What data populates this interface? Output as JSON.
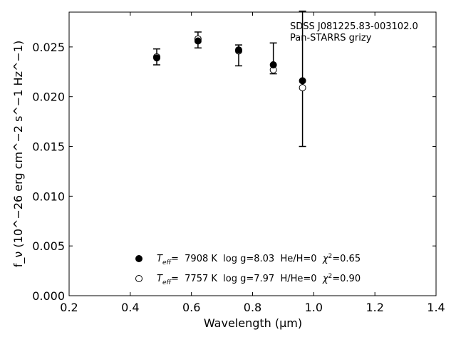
{
  "chart_data": {
    "type": "scatter",
    "xlabel": "Wavelength (μm)",
    "ylabel": "f_ν (10^−26 erg cm^−2 s^−1 Hz^−1)",
    "xlim": [
      0.2,
      1.4
    ],
    "ylim": [
      0.0,
      0.0285
    ],
    "x_ticks": [
      "0.2",
      "0.4",
      "0.6",
      "0.8",
      "1.0",
      "1.2",
      "1.4"
    ],
    "y_ticks": [
      "0.000",
      "0.005",
      "0.010",
      "0.015",
      "0.020",
      "0.025"
    ],
    "annotation_lines": [
      "SDSS J081225.83-003102.0",
      "Pan-STARRS grizy"
    ],
    "observed": {
      "marker": "errorbar-cap",
      "points": [
        {
          "band": "g",
          "x": 0.4866,
          "y": 0.024,
          "err_low": 0.0008,
          "err_high": 0.0008
        },
        {
          "band": "r",
          "x": 0.6215,
          "y": 0.0257,
          "err_low": 0.0008,
          "err_high": 0.0008
        },
        {
          "band": "i",
          "x": 0.7545,
          "y": 0.0247,
          "err_low": 0.0016,
          "err_high": 0.0005
        },
        {
          "band": "z",
          "x": 0.8679,
          "y": 0.0232,
          "err_low": 0.0009,
          "err_high": 0.0022
        },
        {
          "band": "y",
          "x": 0.9633,
          "y": 0.0216,
          "err_low": 0.0066,
          "err_high": 0.007
        }
      ]
    },
    "series": [
      {
        "marker": "filled-circle",
        "color": "#000000",
        "label_parts": [
          "T",
          "eff",
          "=  7908 K  log g=8.03  He/H=0  ",
          "χ",
          "2",
          "=0.65"
        ],
        "x": [
          0.4866,
          0.6215,
          0.7545,
          0.8679,
          0.9633
        ],
        "y": [
          0.0239,
          0.0256,
          0.0247,
          0.0232,
          0.0216
        ]
      },
      {
        "marker": "open-circle",
        "color": "#000000",
        "label_parts": [
          "T",
          "eff",
          "=  7757 K  log g=7.97  H/He=0  ",
          "χ",
          "2",
          "=0.90"
        ],
        "x": [
          0.4866,
          0.6215,
          0.7545,
          0.8679,
          0.9633
        ],
        "y": [
          0.024,
          0.0258,
          0.0246,
          0.0227,
          0.0209
        ]
      }
    ],
    "legend_placement": "bottom-center",
    "grid": false
  }
}
